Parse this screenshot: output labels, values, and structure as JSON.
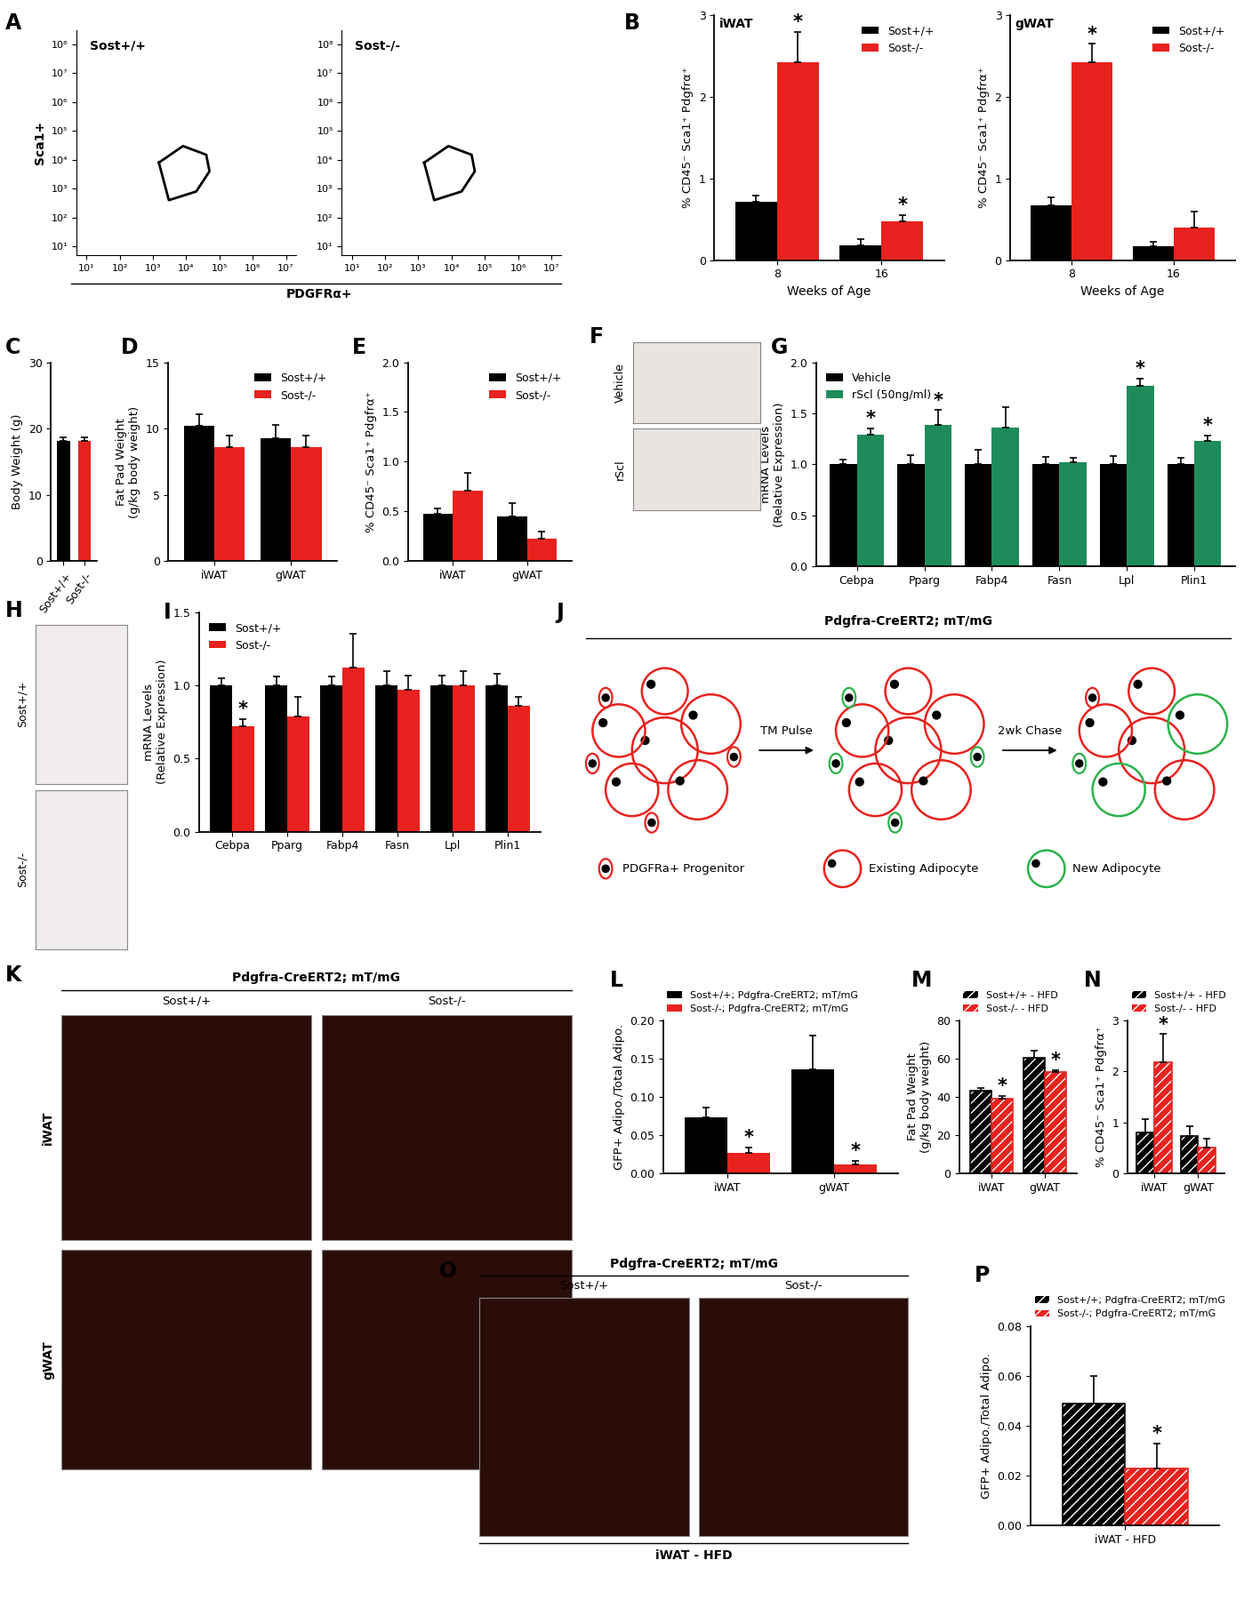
{
  "chart_data": [
    {
      "panel": "A",
      "type": "flow",
      "log": true,
      "xlabel": "PDGFRα+",
      "ylabel": "Sca1+",
      "xlim": [
        5,
        20000000
      ],
      "ylim": [
        5,
        300000000
      ],
      "xticks": [
        {
          "value": 10,
          "label": "10¹"
        },
        {
          "value": 100,
          "label": "10²"
        },
        {
          "value": 1000,
          "label": "10³"
        },
        {
          "value": 10000,
          "label": "10⁴"
        },
        {
          "value": 100000,
          "label": "10⁵"
        },
        {
          "value": 1000000,
          "label": "10⁶"
        },
        {
          "value": 10000000,
          "label": "10⁷"
        }
      ],
      "yticks": [
        {
          "value": 10,
          "label": "10¹"
        },
        {
          "value": 100,
          "label": "10²"
        },
        {
          "value": 1000,
          "label": "10³"
        },
        {
          "value": 10000,
          "label": "10⁴"
        },
        {
          "value": 100000,
          "label": "10⁵"
        },
        {
          "value": 1000000,
          "label": "10⁶"
        },
        {
          "value": 10000000,
          "label": "10⁷"
        },
        {
          "value": 100000000,
          "label": "10⁸"
        }
      ],
      "plots": [
        {
          "title": "Sost+/+",
          "gate": {
            "x": [
              1500,
              8000,
              40000,
              50000,
              20000,
              3000
            ],
            "y": [
              8000,
              30000,
              15000,
              4000,
              800,
              400
            ]
          }
        },
        {
          "title": "Sost-/-",
          "gate": {
            "x": [
              1500,
              8000,
              40000,
              50000,
              20000,
              3000
            ],
            "y": [
              8000,
              30000,
              15000,
              4000,
              800,
              400
            ]
          }
        }
      ]
    },
    {
      "panel": "B",
      "type": "bar",
      "title": "iWAT",
      "xlabel": "Weeks of Age",
      "ylabel": "% CD45⁻ Sca1⁺ Pdgfrα⁺",
      "categories": [
        "8",
        "16"
      ],
      "ylim": [
        0,
        3
      ],
      "yticks": [
        0,
        1,
        2,
        3
      ],
      "legend": "upper right",
      "series": [
        {
          "name": "Sost+/+",
          "color": "#000000",
          "values": [
            0.72,
            0.18
          ],
          "errors": [
            0.07,
            0.08
          ],
          "annotations": [
            null,
            null
          ]
        },
        {
          "name": "Sost-/-",
          "color": "#e8221e",
          "values": [
            2.42,
            0.48
          ],
          "errors": [
            0.38,
            0.07
          ],
          "annotations": [
            "*",
            "*"
          ]
        }
      ]
    },
    {
      "type": "bar",
      "title": "gWAT",
      "xlabel": "Weeks of Age",
      "ylabel": "% CD45⁻ Sca1⁺ Pdgfrα⁺",
      "categories": [
        "8",
        "16"
      ],
      "ylim": [
        0,
        3
      ],
      "yticks": [
        0,
        1,
        2,
        3
      ],
      "legend": "upper right",
      "series": [
        {
          "name": "Sost+/+",
          "color": "#000000",
          "values": [
            0.67,
            0.17
          ],
          "errors": [
            0.1,
            0.06
          ],
          "annotations": [
            null,
            null
          ]
        },
        {
          "name": "Sost-/-",
          "color": "#e8221e",
          "values": [
            2.43,
            0.4
          ],
          "errors": [
            0.22,
            0.2
          ],
          "annotations": [
            "*",
            null
          ]
        }
      ]
    },
    {
      "panel": "C",
      "type": "bar",
      "ylabel": "Body Weight (g)",
      "categories": [
        "Sost+/+",
        "Sost-/-"
      ],
      "values": [
        18.2,
        18.1
      ],
      "errors": [
        0.5,
        0.6
      ],
      "colors": [
        "#000000",
        "#e8221e"
      ],
      "ylim": [
        0,
        30
      ],
      "yticks": [
        0,
        10,
        20,
        30
      ]
    },
    {
      "panel": "D",
      "type": "bar",
      "ylabel": "Fat Pad Weight\n(g/kg body weight)",
      "categories": [
        "iWAT",
        "gWAT"
      ],
      "ylim": [
        0,
        15
      ],
      "yticks": [
        0,
        5,
        10,
        15
      ],
      "legend": "upper right",
      "series": [
        {
          "name": "Sost+/+",
          "color": "#000000",
          "values": [
            10.2,
            9.3
          ],
          "errors": [
            0.9,
            1.0
          ]
        },
        {
          "name": "Sost-/-",
          "color": "#e8221e",
          "values": [
            8.6,
            8.6
          ],
          "errors": [
            0.9,
            0.9
          ]
        }
      ]
    },
    {
      "panel": "E",
      "type": "bar",
      "ylabel": "% CD45⁻ Sca1⁺ Pdgfrα⁺",
      "categories": [
        "iWAT",
        "gWAT"
      ],
      "ylim": [
        0,
        2
      ],
      "yticks": [
        0.0,
        0.5,
        1.0,
        1.5,
        2.0
      ],
      "legend": "upper right",
      "series": [
        {
          "name": "Sost+/+",
          "color": "#000000",
          "values": [
            0.48,
            0.45
          ],
          "errors": [
            0.05,
            0.13
          ]
        },
        {
          "name": "Sost-/-",
          "color": "#e8221e",
          "values": [
            0.71,
            0.23
          ],
          "errors": [
            0.18,
            0.07
          ]
        }
      ]
    },
    {
      "panel": "G",
      "type": "bar",
      "ylabel": "mRNA Levels\n(Relative Expression)",
      "categories": [
        "Cebpa",
        "Pparg",
        "Fabp4",
        "Fasn",
        "Lpl",
        "Plin1"
      ],
      "ylim": [
        0,
        2
      ],
      "yticks": [
        0.0,
        0.5,
        1.0,
        1.5,
        2.0
      ],
      "legend": "upper left",
      "series": [
        {
          "name": "Vehicle",
          "color": "#000000",
          "values": [
            1,
            1,
            1,
            1,
            1,
            1
          ],
          "errors": [
            0.05,
            0.09,
            0.14,
            0.07,
            0.08,
            0.06
          ]
        },
        {
          "name": "rScl (50ng/ml)",
          "color": "#1e8c5a",
          "values": [
            1.29,
            1.39,
            1.36,
            1.02,
            1.77,
            1.23
          ],
          "errors": [
            0.06,
            0.14,
            0.2,
            0.04,
            0.07,
            0.05
          ],
          "annotations": [
            "*",
            "*",
            null,
            null,
            "*",
            "*"
          ]
        }
      ]
    },
    {
      "panel": "I",
      "type": "bar",
      "ylabel": "mRNA Levels\n(Relative Expression)",
      "categories": [
        "Cebpa",
        "Pparg",
        "Fabp4",
        "Fasn",
        "Lpl",
        "Plin1"
      ],
      "ylim": [
        0,
        1.5
      ],
      "yticks": [
        0.0,
        0.5,
        1.0,
        1.5
      ],
      "legend": "upper left",
      "series": [
        {
          "name": "Sost+/+",
          "color": "#000000",
          "values": [
            1,
            1,
            1,
            1,
            1,
            1
          ],
          "errors": [
            0.05,
            0.06,
            0.06,
            0.1,
            0.07,
            0.08
          ]
        },
        {
          "name": "Sost-/-",
          "color": "#e8221e",
          "values": [
            0.72,
            0.79,
            1.12,
            0.97,
            1.0,
            0.86
          ],
          "errors": [
            0.05,
            0.13,
            0.23,
            0.1,
            0.1,
            0.06
          ],
          "annotations": [
            "*",
            null,
            null,
            null,
            null,
            null
          ]
        }
      ]
    },
    {
      "panel": "L",
      "type": "bar",
      "ylabel": "GFP+ Adipo./Total Adipo.",
      "categories": [
        "iWAT",
        "gWAT"
      ],
      "ylim": [
        0,
        0.2
      ],
      "yticks": [
        {
          "value": 0,
          "label": "0.00"
        },
        {
          "value": 0.05,
          "label": "0.05"
        },
        {
          "value": 0.1,
          "label": "0.10"
        },
        {
          "value": 0.15,
          "label": "0.15"
        },
        {
          "value": 0.2,
          "label": "0.20"
        }
      ],
      "legend": "top",
      "series": [
        {
          "name": "Sost+/+; Pdgfra-CreERT2; mT/mG",
          "color": "#000000",
          "values": [
            0.073,
            0.136
          ],
          "errors": [
            0.013,
            0.044
          ]
        },
        {
          "name": "Sost-/-; Pdgfra-CreERT2; mT/mG",
          "color": "#e8221e",
          "values": [
            0.027,
            0.012
          ],
          "errors": [
            0.007,
            0.005
          ],
          "annotations": [
            "*",
            "*"
          ]
        }
      ]
    },
    {
      "panel": "M",
      "type": "bar",
      "ylabel": "Fat Pad Weight\n(g/kg body weight)",
      "categories": [
        "iWAT",
        "gWAT"
      ],
      "ylim": [
        0,
        80
      ],
      "yticks": [
        0,
        20,
        40,
        60,
        80
      ],
      "legend": "top",
      "series": [
        {
          "name": "Sost+/+ - HFD",
          "color": "#000000",
          "line_style": "hatched",
          "values": [
            43.5,
            60.5
          ],
          "errors": [
            1.2,
            3.5
          ]
        },
        {
          "name": "Sost-/- - HFD",
          "color": "#e8221e",
          "line_style": "hatched",
          "values": [
            39,
            53
          ],
          "errors": [
            1.5,
            1.0
          ],
          "annotations": [
            "*",
            "*"
          ]
        }
      ]
    },
    {
      "panel": "N",
      "type": "bar",
      "ylabel": "% CD45⁻ Sca1⁺ Pdgfrα⁺",
      "categories": [
        "iWAT",
        "gWAT"
      ],
      "ylim": [
        0,
        3
      ],
      "yticks": [
        0,
        1,
        2,
        3
      ],
      "legend": "top",
      "series": [
        {
          "name": "Sost+/+ - HFD",
          "color": "#000000",
          "line_style": "hatched",
          "values": [
            0.8,
            0.73
          ],
          "errors": [
            0.27,
            0.2
          ]
        },
        {
          "name": "Sost-/- - HFD",
          "color": "#e8221e",
          "line_style": "hatched",
          "values": [
            2.18,
            0.5
          ],
          "errors": [
            0.55,
            0.18
          ],
          "annotations": [
            "*",
            null
          ]
        }
      ]
    },
    {
      "panel": "P",
      "type": "bar",
      "ylabel": "GFP+ Adipo./Total Adipo.",
      "categories": [
        "iWAT - HFD"
      ],
      "ylim": [
        0,
        0.08
      ],
      "yticks": [
        {
          "value": 0,
          "label": "0.00"
        },
        {
          "value": 0.02,
          "label": "0.02"
        },
        {
          "value": 0.04,
          "label": "0.04"
        },
        {
          "value": 0.06,
          "label": "0.06"
        },
        {
          "value": 0.08,
          "label": "0.08"
        }
      ],
      "legend": "top",
      "series": [
        {
          "name": "Sost+/+; Pdgfra-CreERT2; mT/mG",
          "color": "#000000",
          "line_style": "hatched",
          "values": [
            0.049
          ],
          "errors": [
            0.011
          ]
        },
        {
          "name": "Sost-/-; Pdgfra-CreERT2; mT/mG",
          "color": "#e8221e",
          "line_style": "hatched",
          "values": [
            0.023
          ],
          "errors": [
            0.01
          ],
          "annotations": [
            "*"
          ]
        }
      ]
    }
  ],
  "images": [
    {
      "panel": "F",
      "labels": [
        "Vehicle",
        "rScl"
      ]
    },
    {
      "panel": "H",
      "labels": [
        "Sost+/+",
        "Sost-/-"
      ]
    },
    {
      "panel": "K",
      "title": "Pdgfra-CreERT2; mT/mG",
      "columns": [
        "Sost+/+",
        "Sost-/-"
      ],
      "rows": [
        "iWAT",
        "gWAT"
      ]
    },
    {
      "panel": "O",
      "title": "Pdgfra-CreERT2; mT/mG",
      "columns": [
        "Sost+/+",
        "Sost-/-"
      ],
      "xlabel": "iWAT - HFD"
    }
  ],
  "diagram": {
    "panel": "J",
    "title": "Pdgfra-CreERT2; mT/mG",
    "steps": [
      "TM Pulse",
      "2wk Chase"
    ],
    "key_items": [
      "PDGFRa+ Progenitor",
      "Existing Adipocyte",
      "New Adipocyte"
    ]
  }
}
